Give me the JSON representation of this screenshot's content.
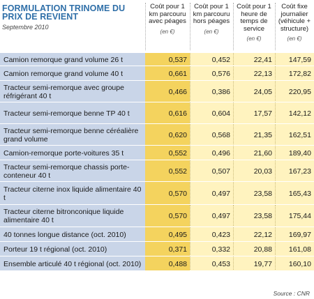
{
  "title": "FORMULATION TRINOME DU PRIX DE REVIENT",
  "subtitle": "Septembre 2010",
  "columns": [
    {
      "label": "Coût pour 1 km parcouru avec péages",
      "unit": "(en €)"
    },
    {
      "label": "Coût pour 1 km parcouru hors péages",
      "unit": "(en €)"
    },
    {
      "label": "Coût pour 1 heure de temps de service",
      "unit": "(en €)"
    },
    {
      "label": "Coût fixe journalier (véhicule + structure)",
      "unit": "(en €)"
    }
  ],
  "rows": [
    {
      "label": "Camion remorque grand volume 26 t",
      "values": [
        "0,537",
        "0,452",
        "22,41",
        "147,59"
      ]
    },
    {
      "label": "Camion remorque grand volume 40 t",
      "values": [
        "0,661",
        "0,576",
        "22,13",
        "172,82"
      ]
    },
    {
      "label": "Tracteur semi-remorque avec groupe réfrigérant 40 t",
      "values": [
        "0,466",
        "0,386",
        "24,05",
        "220,95"
      ]
    },
    {
      "label": "Tracteur semi-remorque benne TP 40 t",
      "values": [
        "0,616",
        "0,604",
        "17,57",
        "142,12"
      ]
    },
    {
      "label": "Tracteur semi-remorque benne céréalière grand volume",
      "values": [
        "0,620",
        "0,568",
        "21,35",
        "162,51"
      ]
    },
    {
      "label": "Camion-remorque porte-voitures 35 t",
      "values": [
        "0,552",
        "0,496",
        "21,60",
        "189,40"
      ]
    },
    {
      "label": "Tracteur semi-remorque chassis porte-conteneur 40 t",
      "values": [
        "0,552",
        "0,507",
        "20,03",
        "167,23"
      ]
    },
    {
      "label": "Tracteur citerne inox liquide alimentaire 40 t",
      "values": [
        "0,570",
        "0,497",
        "23,58",
        "165,43"
      ]
    },
    {
      "label": "Tracteur citerne bitronconique liquide alimentaire 40 t",
      "values": [
        "0,570",
        "0,497",
        "23,58",
        "175,44"
      ]
    },
    {
      "label": "40 tonnes longue distance (oct. 2010)",
      "values": [
        "0,495",
        "0,423",
        "22,12",
        "169,97"
      ]
    },
    {
      "label": "Porteur 19 t régional (oct. 2010)",
      "values": [
        "0,371",
        "0,332",
        "20,88",
        "161,08"
      ]
    },
    {
      "label": "Ensemble articulé 40 t régional (oct. 2010)",
      "values": [
        "0,488",
        "0,453",
        "19,77",
        "160,10"
      ]
    }
  ],
  "source": "Source : CNR"
}
